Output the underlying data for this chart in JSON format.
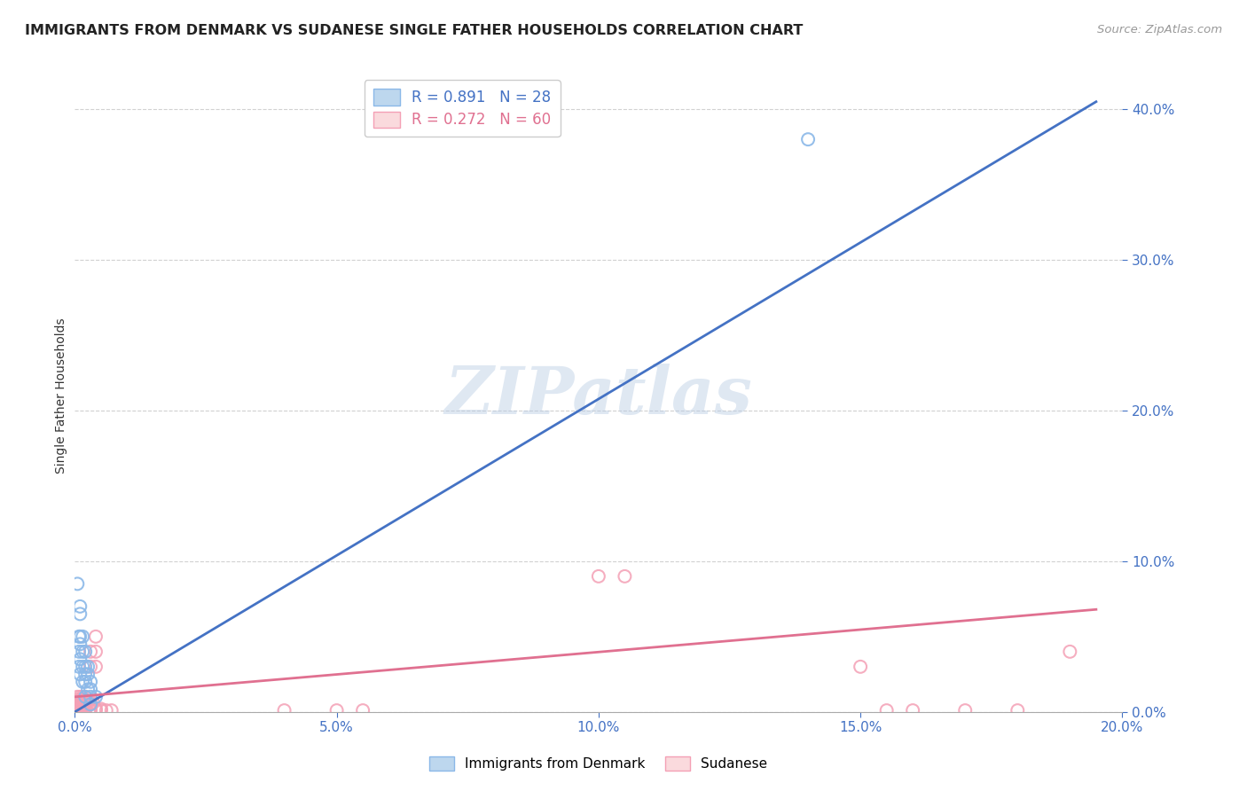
{
  "title": "IMMIGRANTS FROM DENMARK VS SUDANESE SINGLE FATHER HOUSEHOLDS CORRELATION CHART",
  "source": "Source: ZipAtlas.com",
  "xlabel_blue": "Immigrants from Denmark",
  "xlabel_pink": "Sudanese",
  "ylabel": "Single Father Households",
  "watermark": "ZIPatlas",
  "blue_R": 0.891,
  "blue_N": 28,
  "pink_R": 0.272,
  "pink_N": 60,
  "xlim": [
    0.0,
    0.2
  ],
  "ylim": [
    0.0,
    0.42
  ],
  "blue_color": "#8BB8E8",
  "pink_color": "#F4A0B5",
  "blue_line_color": "#4472C4",
  "pink_line_color": "#E07090",
  "axis_tick_color": "#4472C4",
  "grid_color": "#CCCCCC",
  "blue_scatter": [
    [
      0.0005,
      0.085
    ],
    [
      0.001,
      0.07
    ],
    [
      0.001,
      0.065
    ],
    [
      0.0008,
      0.05
    ],
    [
      0.001,
      0.05
    ],
    [
      0.0015,
      0.05
    ],
    [
      0.001,
      0.045
    ],
    [
      0.0008,
      0.04
    ],
    [
      0.0015,
      0.04
    ],
    [
      0.002,
      0.04
    ],
    [
      0.001,
      0.035
    ],
    [
      0.0008,
      0.03
    ],
    [
      0.0015,
      0.03
    ],
    [
      0.002,
      0.03
    ],
    [
      0.0025,
      0.03
    ],
    [
      0.001,
      0.025
    ],
    [
      0.002,
      0.025
    ],
    [
      0.0025,
      0.025
    ],
    [
      0.003,
      0.02
    ],
    [
      0.002,
      0.02
    ],
    [
      0.0015,
      0.02
    ],
    [
      0.0025,
      0.015
    ],
    [
      0.003,
      0.015
    ],
    [
      0.002,
      0.01
    ],
    [
      0.003,
      0.01
    ],
    [
      0.004,
      0.01
    ],
    [
      0.003,
      0.005
    ],
    [
      0.14,
      0.38
    ]
  ],
  "pink_scatter": [
    [
      0.0005,
      0.01
    ],
    [
      0.001,
      0.01
    ],
    [
      0.0015,
      0.01
    ],
    [
      0.002,
      0.01
    ],
    [
      0.0005,
      0.008
    ],
    [
      0.001,
      0.008
    ],
    [
      0.0015,
      0.008
    ],
    [
      0.002,
      0.008
    ],
    [
      0.0008,
      0.007
    ],
    [
      0.001,
      0.007
    ],
    [
      0.0015,
      0.007
    ],
    [
      0.0005,
      0.006
    ],
    [
      0.001,
      0.006
    ],
    [
      0.0015,
      0.006
    ],
    [
      0.002,
      0.006
    ],
    [
      0.0025,
      0.006
    ],
    [
      0.003,
      0.006
    ],
    [
      0.0035,
      0.006
    ],
    [
      0.0005,
      0.005
    ],
    [
      0.001,
      0.005
    ],
    [
      0.0015,
      0.005
    ],
    [
      0.002,
      0.005
    ],
    [
      0.003,
      0.005
    ],
    [
      0.004,
      0.05
    ],
    [
      0.0005,
      0.004
    ],
    [
      0.001,
      0.004
    ],
    [
      0.002,
      0.004
    ],
    [
      0.003,
      0.04
    ],
    [
      0.004,
      0.04
    ],
    [
      0.0005,
      0.003
    ],
    [
      0.001,
      0.003
    ],
    [
      0.0015,
      0.003
    ],
    [
      0.002,
      0.003
    ],
    [
      0.003,
      0.03
    ],
    [
      0.004,
      0.03
    ],
    [
      0.0005,
      0.002
    ],
    [
      0.001,
      0.002
    ],
    [
      0.002,
      0.002
    ],
    [
      0.003,
      0.002
    ],
    [
      0.004,
      0.002
    ],
    [
      0.005,
      0.002
    ],
    [
      0.0005,
      0.001
    ],
    [
      0.001,
      0.001
    ],
    [
      0.002,
      0.001
    ],
    [
      0.003,
      0.001
    ],
    [
      0.004,
      0.001
    ],
    [
      0.005,
      0.001
    ],
    [
      0.006,
      0.001
    ],
    [
      0.007,
      0.001
    ],
    [
      0.055,
      0.001
    ],
    [
      0.04,
      0.001
    ],
    [
      0.05,
      0.001
    ],
    [
      0.1,
      0.09
    ],
    [
      0.105,
      0.09
    ],
    [
      0.15,
      0.03
    ],
    [
      0.16,
      0.001
    ],
    [
      0.17,
      0.001
    ],
    [
      0.18,
      0.001
    ],
    [
      0.19,
      0.04
    ],
    [
      0.155,
      0.001
    ]
  ],
  "blue_line_x": [
    0.0,
    0.195
  ],
  "blue_line_y": [
    0.0,
    0.405
  ],
  "pink_line_x": [
    0.0,
    0.195
  ],
  "pink_line_y": [
    0.01,
    0.068
  ]
}
